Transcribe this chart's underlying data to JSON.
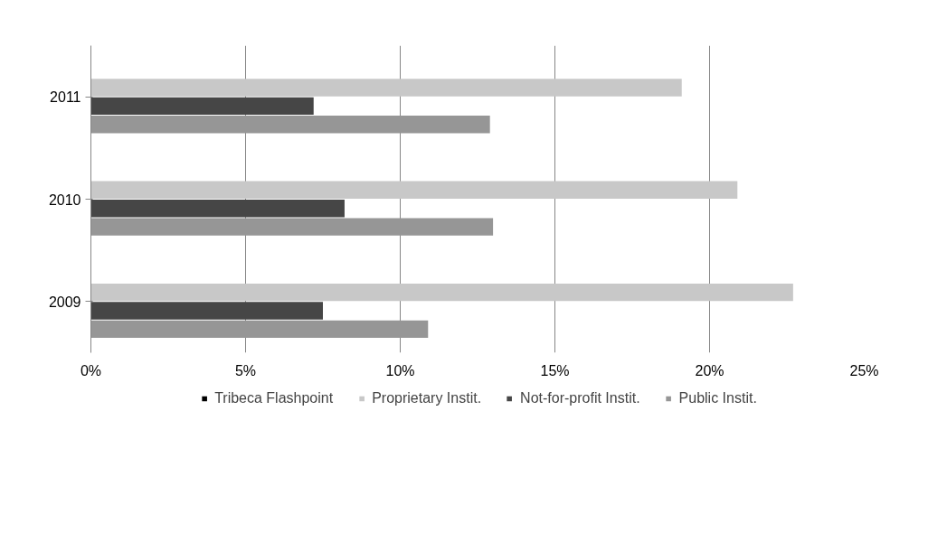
{
  "chart_data": {
    "type": "bar",
    "orientation": "horizontal",
    "categories": [
      "2011",
      "2010",
      "2009"
    ],
    "series": [
      {
        "name": "Tribeca Flashpoint",
        "color": "#000000",
        "values": [
          null,
          null,
          null
        ]
      },
      {
        "name": "Proprietary Instit.",
        "color": "#c8c8c8",
        "values": [
          19.1,
          20.9,
          22.7
        ]
      },
      {
        "name": "Not-for-profit Instit.",
        "color": "#464646",
        "values": [
          7.2,
          8.2,
          7.5
        ]
      },
      {
        "name": "Public Instit.",
        "color": "#969696",
        "values": [
          12.9,
          13.0,
          10.9
        ]
      }
    ],
    "xlim": [
      0,
      25
    ],
    "xticks": [
      {
        "value": 0,
        "label": "0%"
      },
      {
        "value": 5,
        "label": "5%"
      },
      {
        "value": 10,
        "label": "10%"
      },
      {
        "value": 15,
        "label": "15%"
      },
      {
        "value": 20,
        "label": "20%"
      },
      {
        "value": 25,
        "label": "25%"
      }
    ],
    "grid": "x",
    "legend": "bottom"
  }
}
